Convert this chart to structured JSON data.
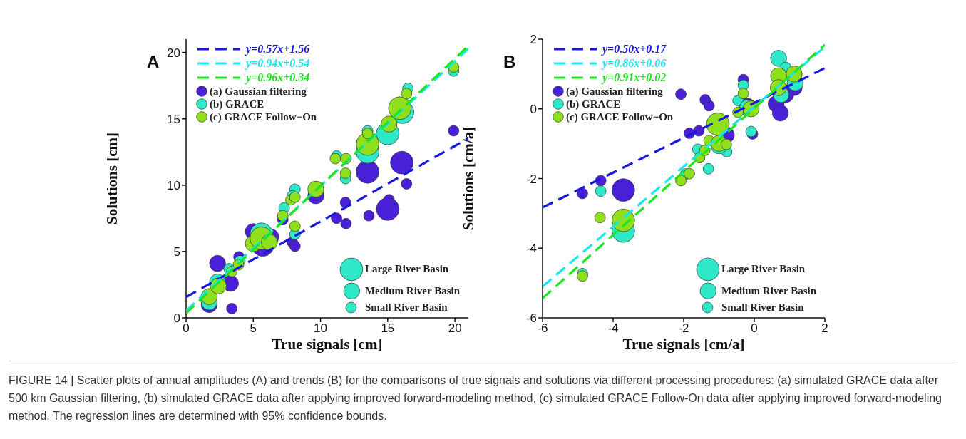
{
  "chart_data": [
    {
      "type": "bubble",
      "title": "A",
      "xlabel": "True signals [cm]",
      "ylabel": "Solutions [cm]",
      "xlim": [
        0,
        21
      ],
      "ylim": [
        0,
        21
      ],
      "xticks": [
        0,
        5,
        10,
        15,
        20
      ],
      "yticks": [
        0,
        5,
        10,
        15,
        20
      ],
      "legend": "top left",
      "marker": "circle",
      "size_legend": [
        {
          "value": 1,
          "label": "Large River Basin"
        },
        {
          "value": 0.5,
          "label": "Medium River Basin"
        },
        {
          "value": 0.22,
          "label": "Small River Basin"
        }
      ],
      "series": [
        {
          "name": "(a) Gaussian filtering",
          "color": "#4a1fd8",
          "x": [
            2.34,
            1.72,
            3.4,
            3.3,
            3.93,
            5.0,
            5.7,
            6.3,
            7.2,
            7.9,
            8.1,
            9.65,
            11.2,
            11.9,
            11.86,
            13.5,
            13.6,
            15.1,
            15.0,
            16.05,
            16.4,
            19.9
          ],
          "values": [
            4.1,
            1.0,
            0.7,
            2.6,
            4.6,
            6.5,
            5.5,
            6.1,
            7.4,
            5.7,
            5.4,
            9.2,
            7.5,
            7.1,
            8.7,
            11.0,
            7.7,
            8.9,
            8.2,
            11.7,
            10.1,
            14.1
          ],
          "sizes": [
            0.5,
            0.5,
            0.22,
            0.5,
            0.22,
            0.5,
            1,
            0.5,
            0.22,
            0.22,
            0.22,
            0.5,
            0.22,
            0.22,
            0.22,
            1,
            0.22,
            0.22,
            1,
            1,
            0.22,
            0.22
          ]
        },
        {
          "name": "(b) GRACE",
          "color": "#2ee8c8",
          "x": [
            1.72,
            2.34,
            3.2,
            4.0,
            5.6,
            7.3,
            8.1,
            7.9,
            8.1,
            11.2,
            11.86,
            13.5,
            13.5,
            15.0,
            16.5,
            16.1,
            19.9
          ],
          "values": [
            1.2,
            2.7,
            3.7,
            4.3,
            6.3,
            8.3,
            9.7,
            9.2,
            6.3,
            12.2,
            10.5,
            12.5,
            14.1,
            13.9,
            17.3,
            15.5,
            18.6
          ],
          "sizes": [
            0.5,
            0.5,
            0.22,
            0.22,
            1,
            0.22,
            0.22,
            0.22,
            0.22,
            0.22,
            0.22,
            1,
            0.22,
            1,
            0.22,
            1,
            0.22
          ]
        },
        {
          "name": "(c) GRACE Follow−On",
          "color": "#8ee01c",
          "x": [
            1.72,
            2.4,
            3.4,
            3.9,
            5.0,
            5.6,
            6.2,
            7.2,
            8.1,
            7.8,
            8.1,
            9.65,
            11.1,
            11.9,
            11.86,
            13.5,
            13.5,
            15.1,
            15.9,
            16.4,
            19.9
          ],
          "values": [
            1.6,
            2.4,
            3.5,
            4.0,
            5.6,
            6.0,
            5.7,
            7.7,
            6.9,
            8.9,
            9.1,
            9.7,
            12.0,
            12.0,
            10.9,
            13.1,
            13.9,
            14.6,
            15.8,
            16.9,
            18.9
          ],
          "sizes": [
            0.5,
            0.5,
            0.22,
            0.22,
            0.5,
            1,
            0.5,
            0.22,
            0.22,
            0.22,
            0.22,
            0.5,
            0.22,
            0.22,
            0.22,
            1,
            0.22,
            0.5,
            1,
            0.22,
            0.22
          ]
        },
        {
          "name": "y=0.57x+1.56",
          "type": "line",
          "color": "#1717e0",
          "line_style": "dashed",
          "marker": "none",
          "x": [
            0,
            21
          ],
          "values": [
            1.56,
            13.53
          ]
        },
        {
          "name": "y=0.94x+0.54",
          "type": "line",
          "color": "#19e6f0",
          "line_style": "dashed",
          "marker": "none",
          "x": [
            0,
            21
          ],
          "values": [
            0.54,
            20.28
          ]
        },
        {
          "name": "y=0.96x+0.34",
          "type": "line",
          "color": "#1ee61e",
          "line_style": "dashed",
          "marker": "none",
          "x": [
            0,
            21
          ],
          "values": [
            0.34,
            20.5
          ]
        }
      ],
      "annotations": [
        "FIGURE 14 | Scatter plots of annual amplitudes (A) and trends (B) for the comparisons of true signals and solutions via different processing procedures: (a) simulated GRACE data after 500 km Gaussian filtering, (b) simulated GRACE data after applying improved forward-modeling method, (c) simulated GRACE Follow-On data after applying improved forward-modeling method. The regression lines are determined with 95% confidence bounds."
      ]
    },
    {
      "type": "bubble",
      "title": "B",
      "xlabel": "True signals [cm/a]",
      "ylabel": "Solutions [cm/a]",
      "xlim": [
        -6,
        2
      ],
      "ylim": [
        -6,
        2
      ],
      "xticks": [
        -6,
        -4,
        -2,
        0,
        2
      ],
      "yticks": [
        -6,
        -4,
        -2,
        0,
        2
      ],
      "legend": "top left",
      "marker": "circle",
      "size_legend": [
        {
          "value": 1,
          "label": "Large River Basin"
        },
        {
          "value": 0.5,
          "label": "Medium River Basin"
        },
        {
          "value": 0.22,
          "label": "Small River Basin"
        }
      ],
      "series": [
        {
          "name": "(a) Gaussian filtering",
          "color": "#4a1fd8",
          "x": [
            -4.87,
            -4.35,
            -3.71,
            -2.08,
            -1.39,
            -1.28,
            -1.84,
            -1.57,
            -0.79,
            -0.31,
            -0.19,
            -0.05,
            0.62,
            0.74,
            1.13,
            0.89
          ],
          "values": [
            -2.43,
            -2.06,
            -2.33,
            0.42,
            0.26,
            0.09,
            -0.7,
            -0.63,
            -0.75,
            0.84,
            0.07,
            -0.72,
            0.14,
            -0.12,
            0.61,
            0.41
          ],
          "sizes": [
            0.22,
            0.22,
            1,
            0.22,
            0.22,
            0.22,
            0.22,
            0.22,
            0.5,
            0.22,
            0.5,
            0.22,
            0.5,
            0.5,
            0.5,
            0.5
          ]
        },
        {
          "name": "(b) GRACE",
          "color": "#2ee8c8",
          "x": [
            -4.87,
            -4.35,
            -3.71,
            -0.46,
            -0.31,
            -0.09,
            -1.6,
            -1.3,
            -0.78,
            -1.0,
            -1.94,
            0.69,
            0.76,
            1.16,
            -0.19,
            0.89
          ],
          "values": [
            -4.73,
            -2.36,
            -3.51,
            0.24,
            0.68,
            -0.65,
            -1.16,
            -1.72,
            -1.23,
            -1.06,
            -1.87,
            1.45,
            0.41,
            0.75,
            0.03,
            1.19
          ],
          "sizes": [
            0.22,
            0.22,
            1,
            0.22,
            0.22,
            0.22,
            0.22,
            0.22,
            0.22,
            0.5,
            0.22,
            0.5,
            0.5,
            0.5,
            0.5,
            0.22
          ]
        },
        {
          "name": "(c) GRACE Follow−On",
          "color": "#8ee01c",
          "x": [
            -4.87,
            -4.37,
            -3.71,
            -2.08,
            -1.84,
            -1.55,
            -1.4,
            -1.28,
            -1.03,
            -1.0,
            -0.79,
            -0.46,
            -0.31,
            -0.09,
            0.69,
            0.68,
            1.13
          ],
          "values": [
            -4.8,
            -3.12,
            -3.2,
            -2.06,
            -1.86,
            -1.4,
            -1.19,
            -0.91,
            -0.44,
            -0.99,
            -1.02,
            -0.1,
            0.44,
            0.0,
            0.95,
            0.61,
            1.0
          ],
          "sizes": [
            0.22,
            0.22,
            1,
            0.22,
            0.22,
            0.22,
            0.22,
            0.22,
            1,
            0.5,
            0.22,
            0.22,
            0.22,
            0.5,
            0.5,
            0.5,
            0.5
          ]
        },
        {
          "name": "y=0.50x+0.17",
          "type": "line",
          "color": "#1717e0",
          "line_style": "dashed",
          "marker": "none",
          "x": [
            -6,
            2
          ],
          "values": [
            -2.83,
            1.17
          ]
        },
        {
          "name": "y=0.86x+0.06",
          "type": "line",
          "color": "#19e6f0",
          "line_style": "dashed",
          "marker": "none",
          "x": [
            -6,
            2
          ],
          "values": [
            -5.1,
            1.78
          ]
        },
        {
          "name": "y=0.91x+0.02",
          "type": "line",
          "color": "#1ee61e",
          "line_style": "dashed",
          "marker": "none",
          "x": [
            -6,
            2
          ],
          "values": [
            -5.44,
            1.84
          ]
        }
      ]
    }
  ]
}
